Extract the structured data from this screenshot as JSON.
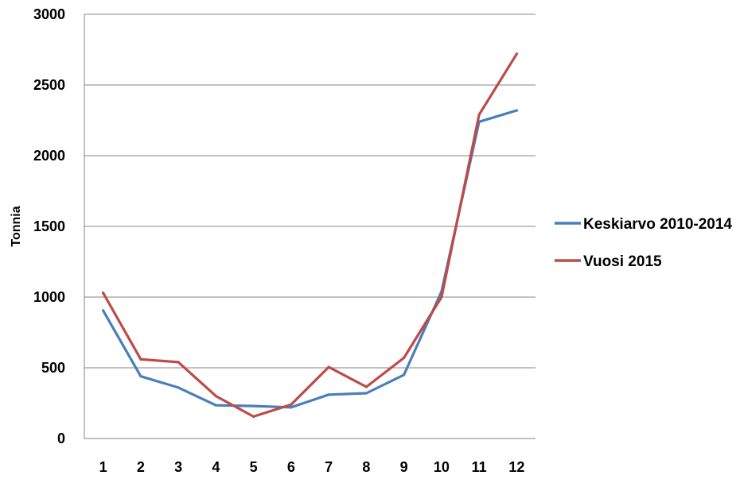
{
  "chart_data": {
    "type": "line",
    "categories": [
      "1",
      "2",
      "3",
      "4",
      "5",
      "6",
      "7",
      "8",
      "9",
      "10",
      "11",
      "12"
    ],
    "ylabel": "Tonnia",
    "ylim": [
      0,
      3000
    ],
    "yticks": [
      "0",
      "500",
      "1000",
      "1500",
      "2000",
      "2500",
      "3000"
    ],
    "grid": "horizontal",
    "legend_position": "right",
    "series": [
      {
        "name": "Keskiarvo 2010-2014",
        "color": "#4a7ebb",
        "values": [
          905,
          440,
          360,
          235,
          230,
          220,
          310,
          320,
          450,
          1040,
          2240,
          2320
        ]
      },
      {
        "name": "Vuosi 2015",
        "color": "#be4b48",
        "values": [
          1030,
          560,
          540,
          300,
          155,
          240,
          505,
          365,
          570,
          1000,
          2290,
          2720
        ]
      }
    ]
  }
}
